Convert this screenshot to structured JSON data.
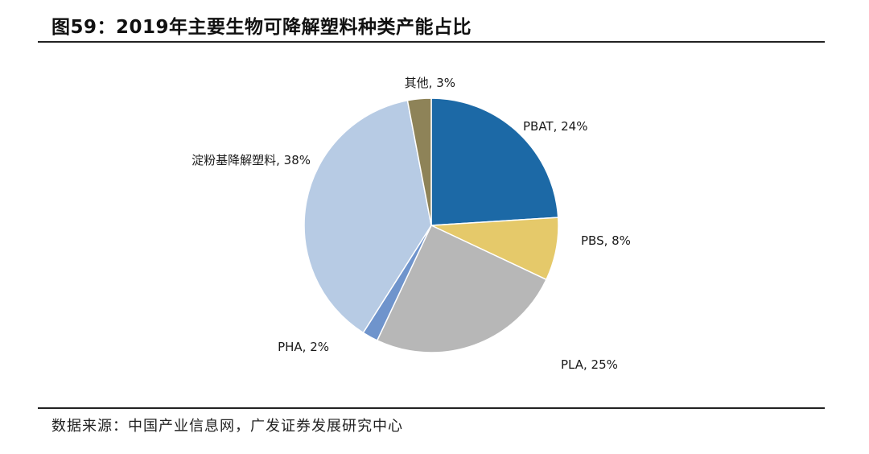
{
  "figure": {
    "title": "图59：2019年主要生物可降解塑料种类产能占比",
    "source": "数据来源：中国产业信息网，广发证券发展研究中心"
  },
  "chart_data": {
    "type": "pie",
    "title": "图59：2019年主要生物可降解塑料种类产能占比",
    "start_angle_deg": 0,
    "direction": "clockwise",
    "slices": [
      {
        "name": "PBAT",
        "value": 24,
        "label": "PBAT, 24%",
        "color": "#1c69a6"
      },
      {
        "name": "PBS",
        "value": 8,
        "label": "PBS, 8%",
        "color": "#e5c96a"
      },
      {
        "name": "PLA",
        "value": 25,
        "label": "PLA, 25%",
        "color": "#b7b7b7"
      },
      {
        "name": "PHA",
        "value": 2,
        "label": "PHA, 2%",
        "color": "#6f94cc"
      },
      {
        "name": "淀粉基降解塑料",
        "value": 38,
        "label": "淀粉基降解塑料, 38%",
        "color": "#b7cbe4"
      },
      {
        "name": "其他",
        "value": 3,
        "label": "其他, 3%",
        "color": "#8e8358"
      }
    ]
  }
}
